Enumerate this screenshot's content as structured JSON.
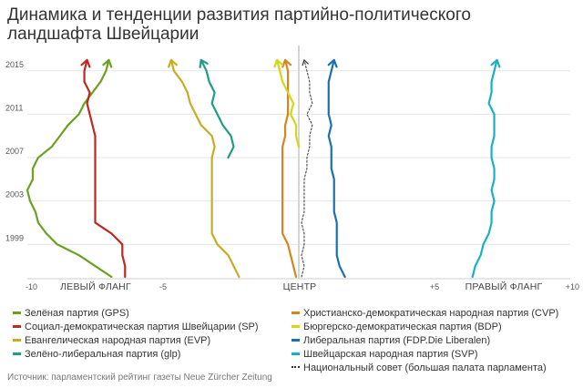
{
  "title": "Динамика и тенденции развития партийно-политического ландшафта Швейцарии",
  "source": "Источник: парламентский рейтинг газеты Neue Zürcher Zeitung",
  "axis": {
    "left_word": "ЛЕВЫЙ ФЛАНГ",
    "center_word": "ЦЕНТР",
    "right_word": "ПРАВЫЙ ФЛАНГ"
  },
  "chart_data": {
    "type": "line",
    "title": "Динамика и тенденции развития партийно-политического ландшафта Швейцарии",
    "xlabel": "",
    "ylabel": "",
    "xlim": [
      -10,
      10
    ],
    "ylim": [
      1996,
      2017
    ],
    "x_ticks": [
      {
        "value": -10,
        "label": "-10"
      },
      {
        "value": -5,
        "label": "-5"
      },
      {
        "value": 5,
        "label": "+5"
      },
      {
        "value": 10,
        "label": "+10"
      }
    ],
    "y_ticks": [
      {
        "value": 1999,
        "label": "1999"
      },
      {
        "value": 2003,
        "label": "2003"
      },
      {
        "value": 2007,
        "label": "2007"
      },
      {
        "value": 2011,
        "label": "2011"
      },
      {
        "value": 2015,
        "label": "2015"
      }
    ],
    "grid": true,
    "legend_position": "bottom",
    "years": [
      1996,
      1997,
      1998,
      1999,
      2000,
      2001,
      2002,
      2003,
      2004,
      2005,
      2006,
      2007,
      2008,
      2009,
      2010,
      2011,
      2012,
      2013,
      2014,
      2015,
      2016
    ],
    "series": [
      {
        "name": "Зелёная партия (GPS)",
        "color": "#6aa121",
        "column": 0,
        "dashed": false,
        "x": [
          -6.9,
          -7.5,
          -8.1,
          -8.9,
          -9.3,
          -9.6,
          -9.7,
          -9.9,
          -10.0,
          -9.8,
          -9.8,
          -9.6,
          -9.1,
          -8.8,
          -8.5,
          -8.1,
          -7.9,
          -7.6,
          -7.3,
          -7.1,
          -7.0
        ]
      },
      {
        "name": "Социал-демократическая партия Швейцарии (SP)",
        "color": "#c0271e",
        "column": 0,
        "dashed": false,
        "x": [
          -6.4,
          -6.4,
          -6.5,
          -6.5,
          -6.9,
          -7.5,
          -7.5,
          -7.5,
          -7.5,
          -7.5,
          -7.5,
          -7.5,
          -7.5,
          -7.5,
          -7.6,
          -7.7,
          -7.8,
          -7.7,
          -7.9,
          -7.9,
          -7.8
        ]
      },
      {
        "name": "Евангелическая народная партия (EVP)",
        "color": "#c7ad1f",
        "column": 0,
        "dashed": false,
        "x": [
          -2.2,
          -2.4,
          -2.6,
          -3.0,
          -3.2,
          -3.2,
          -3.2,
          -3.2,
          -3.2,
          -3.2,
          -3.2,
          -3.2,
          -3.1,
          -3.2,
          -3.6,
          -3.8,
          -4.0,
          -4.1,
          -4.3,
          -4.6,
          -4.7
        ]
      },
      {
        "name": "Зелёно-либеральная партия (glp)",
        "color": "#1f9e82",
        "column": 0,
        "dashed": false,
        "x": null,
        "x_partial": {
          "from_year": 2007,
          "values": [
            -2.6,
            -2.4,
            -2.5,
            -2.8,
            -3.0,
            -3.2,
            -3.1,
            -3.3,
            -3.4,
            -3.6
          ]
        }
      },
      {
        "name": "Христианско-демократическая народная партия (CVP)",
        "color": "#d2861b",
        "column": 1,
        "dashed": false,
        "x": [
          -0.1,
          -0.2,
          -0.3,
          -0.4,
          -0.6,
          -0.6,
          -0.6,
          -0.6,
          -0.6,
          -0.6,
          -0.6,
          -0.6,
          -0.6,
          -0.5,
          -0.5,
          -0.4,
          -0.4,
          -0.4,
          -0.4,
          -0.4,
          -0.5
        ]
      },
      {
        "name": "Бюргерско-демократическая партия (BDP)",
        "color": "#d7d41a",
        "column": 1,
        "dashed": false,
        "x": null,
        "x_partial": {
          "from_year": 2008,
          "values": [
            0.0,
            -0.1,
            -0.1,
            -0.3,
            -0.2,
            -0.4,
            -0.6,
            -0.7,
            -0.8
          ]
        }
      },
      {
        "name": "Либеральная партия (FDP.Die Liberalen)",
        "color": "#1b6fb5",
        "column": 1,
        "dashed": false,
        "x": [
          1.7,
          1.5,
          1.4,
          1.4,
          1.4,
          1.4,
          1.3,
          1.3,
          1.3,
          1.3,
          1.2,
          1.2,
          1.2,
          1.1,
          1.2,
          1.1,
          1.1,
          1.1,
          1.1,
          1.2,
          1.3
        ]
      },
      {
        "name": "Швейцарская народная партия (SVP)",
        "color": "#1bafc6",
        "column": 1,
        "dashed": false,
        "x": [
          6.4,
          6.5,
          6.7,
          6.8,
          7.0,
          7.1,
          7.1,
          7.2,
          7.1,
          7.2,
          7.2,
          7.1,
          7.1,
          7.2,
          7.2,
          7.2,
          7.0,
          7.1,
          7.1,
          7.2,
          7.3
        ]
      },
      {
        "name": "Национальный совет (большая палата парламента)",
        "color": "#333333",
        "column": 1,
        "dashed": true,
        "x": [
          0.1,
          0.2,
          0.1,
          0.2,
          0.2,
          0.1,
          0.2,
          0.2,
          0.2,
          0.2,
          0.3,
          0.3,
          0.4,
          0.4,
          0.5,
          0.3,
          0.5,
          0.4,
          0.4,
          0.3,
          0.2
        ]
      }
    ]
  }
}
